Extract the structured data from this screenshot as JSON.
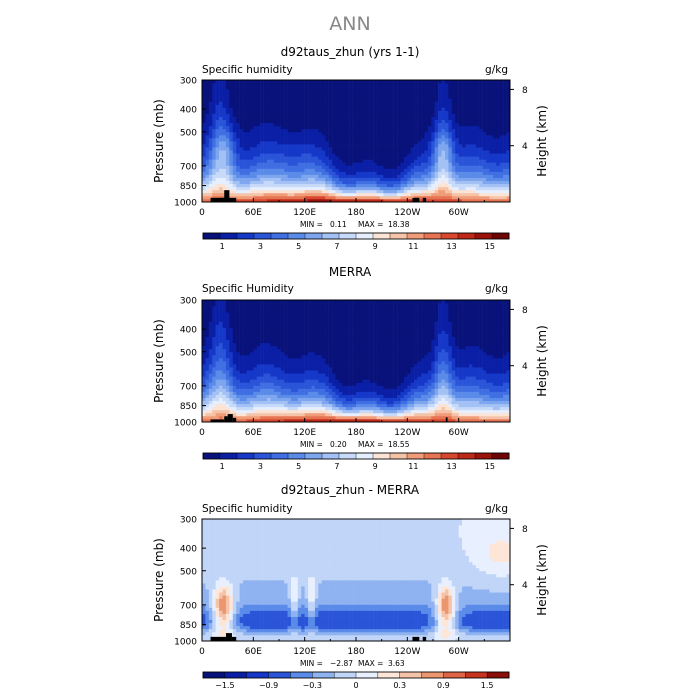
{
  "figure_title": "ANN",
  "chart_data": [
    {
      "type": "heatmap",
      "title": "d92taus_zhun (yrs 1-1)",
      "left_label": "Specific humidity",
      "units": "g/kg",
      "ylabel": "Pressure (mb)",
      "ylabel_right": "Height (km)",
      "pressure_ticks": [
        300,
        400,
        500,
        700,
        850,
        1000
      ],
      "height_ticks": [
        8,
        4
      ],
      "lon_ticks": [
        "0",
        "60E",
        "120E",
        "180",
        "120W",
        "60W"
      ],
      "xlim": [
        0,
        360
      ],
      "stats": {
        "min_label": "MIN =",
        "min": "0.11",
        "max_label": "MAX =",
        "max": "18.38"
      },
      "colorbar_labels": [
        "1",
        "3",
        "5",
        "7",
        "9",
        "11",
        "13",
        "15"
      ],
      "colorbar_colors": [
        "#08127a",
        "#0a1fa6",
        "#1638c8",
        "#2a55d8",
        "#3f6fe2",
        "#5a8be9",
        "#7ea6ef",
        "#a3c1f4",
        "#c7dafa",
        "#e6efff",
        "#fbe3d5",
        "#f5c3a8",
        "#f09c79",
        "#e67352",
        "#d8482f",
        "#bf2818",
        "#9b120b",
        "#6e0505"
      ],
      "field_range": [
        0,
        17
      ],
      "terrain": [
        [
          10,
          35,
          960
        ],
        [
          20,
          28,
          960
        ],
        [
          26,
          32,
          890
        ],
        [
          34,
          40,
          960
        ],
        [
          246,
          254,
          960
        ],
        [
          258,
          262,
          960
        ]
      ]
    },
    {
      "type": "heatmap",
      "title": "MERRA",
      "left_label": "Specific Humidity",
      "units": "g/kg",
      "ylabel": "Pressure (mb)",
      "ylabel_right": "Height (km)",
      "pressure_ticks": [
        300,
        400,
        500,
        700,
        850,
        1000
      ],
      "height_ticks": [
        8,
        4
      ],
      "lon_ticks": [
        "0",
        "60E",
        "120E",
        "180",
        "120W",
        "60W"
      ],
      "xlim": [
        0,
        360
      ],
      "stats": {
        "min_label": "MIN =",
        "min": "0.20",
        "max_label": "MAX =",
        "max": "18.55"
      },
      "colorbar_labels": [
        "1",
        "3",
        "5",
        "7",
        "9",
        "11",
        "13",
        "15"
      ],
      "colorbar_colors": [
        "#08127a",
        "#0a1fa6",
        "#1638c8",
        "#2a55d8",
        "#3f6fe2",
        "#5a8be9",
        "#7ea6ef",
        "#a3c1f4",
        "#c7dafa",
        "#e6efff",
        "#fbe3d5",
        "#f5c3a8",
        "#f09c79",
        "#e67352",
        "#d8482f",
        "#bf2818",
        "#9b120b",
        "#6e0505"
      ],
      "field_range": [
        0,
        17
      ],
      "terrain": [
        [
          10,
          26,
          975
        ],
        [
          26,
          30,
          945
        ],
        [
          30,
          36,
          925
        ],
        [
          36,
          40,
          960
        ],
        [
          285,
          287,
          955
        ]
      ]
    },
    {
      "type": "heatmap",
      "title": "d92taus_zhun - MERRA",
      "left_label": "Specific humidity",
      "units": "g/kg",
      "ylabel": "Pressure (mb)",
      "ylabel_right": "Height (km)",
      "pressure_ticks": [
        300,
        400,
        500,
        700,
        850,
        1000
      ],
      "height_ticks": [
        8,
        4
      ],
      "lon_ticks": [
        "0",
        "60E",
        "120E",
        "180",
        "120W",
        "60W"
      ],
      "xlim": [
        0,
        360
      ],
      "stats": {
        "min_label": "MIN =",
        "min": "−2.87",
        "max_label": "MAX =",
        "max": "3.63"
      },
      "colorbar_labels": [
        "−1.5",
        "−0.9",
        "−0.3",
        "0",
        "0.3",
        "0.9",
        "1.5"
      ],
      "colorbar_colors": [
        "#08127a",
        "#0a1fa6",
        "#1638c8",
        "#2a55d8",
        "#5a8be9",
        "#8fb2f0",
        "#c0d5f8",
        "#e8f0ff",
        "#fde6d8",
        "#f5c3a8",
        "#ec9670",
        "#dd6444",
        "#c6341f",
        "#8a0f08"
      ],
      "field_range": [
        -2.1,
        2.1
      ],
      "terrain": [
        [
          10,
          28,
          960
        ],
        [
          28,
          35,
          925
        ],
        [
          35,
          40,
          960
        ],
        [
          246,
          254,
          960
        ],
        [
          258,
          262,
          960
        ]
      ]
    }
  ]
}
